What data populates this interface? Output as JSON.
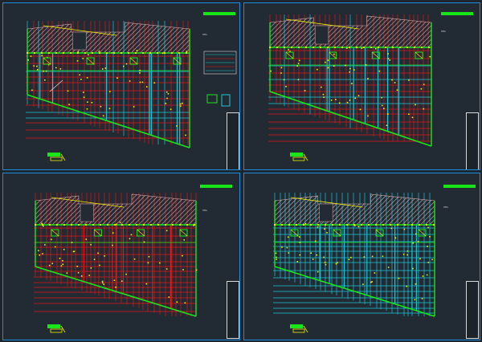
{
  "canvas": {
    "background": "#1e252d",
    "sheet_background": "#222a33",
    "frame_color": "#1a8fe0"
  },
  "colors": {
    "grid_red": "#e01818",
    "grid_cyan": "#19c8d8",
    "hatch_pink": "#d9a7a7",
    "wall_green": "#19e619",
    "marker_yellow": "#f2f200",
    "titleblock_white": "#d8d8d8",
    "accent_green": "#19e619"
  },
  "sheets": [
    {
      "id": "sheet-tl",
      "variant": "plan-mixed",
      "note": "HMA",
      "has_detail_callouts": true
    },
    {
      "id": "sheet-tr",
      "variant": "plan-mixed",
      "note": "HMA",
      "has_detail_callouts": false
    },
    {
      "id": "sheet-bl",
      "variant": "plan-red",
      "note": "HMA",
      "has_detail_callouts": false
    },
    {
      "id": "sheet-br",
      "variant": "plan-cyan",
      "note": "HMA",
      "has_detail_callouts": false
    }
  ]
}
